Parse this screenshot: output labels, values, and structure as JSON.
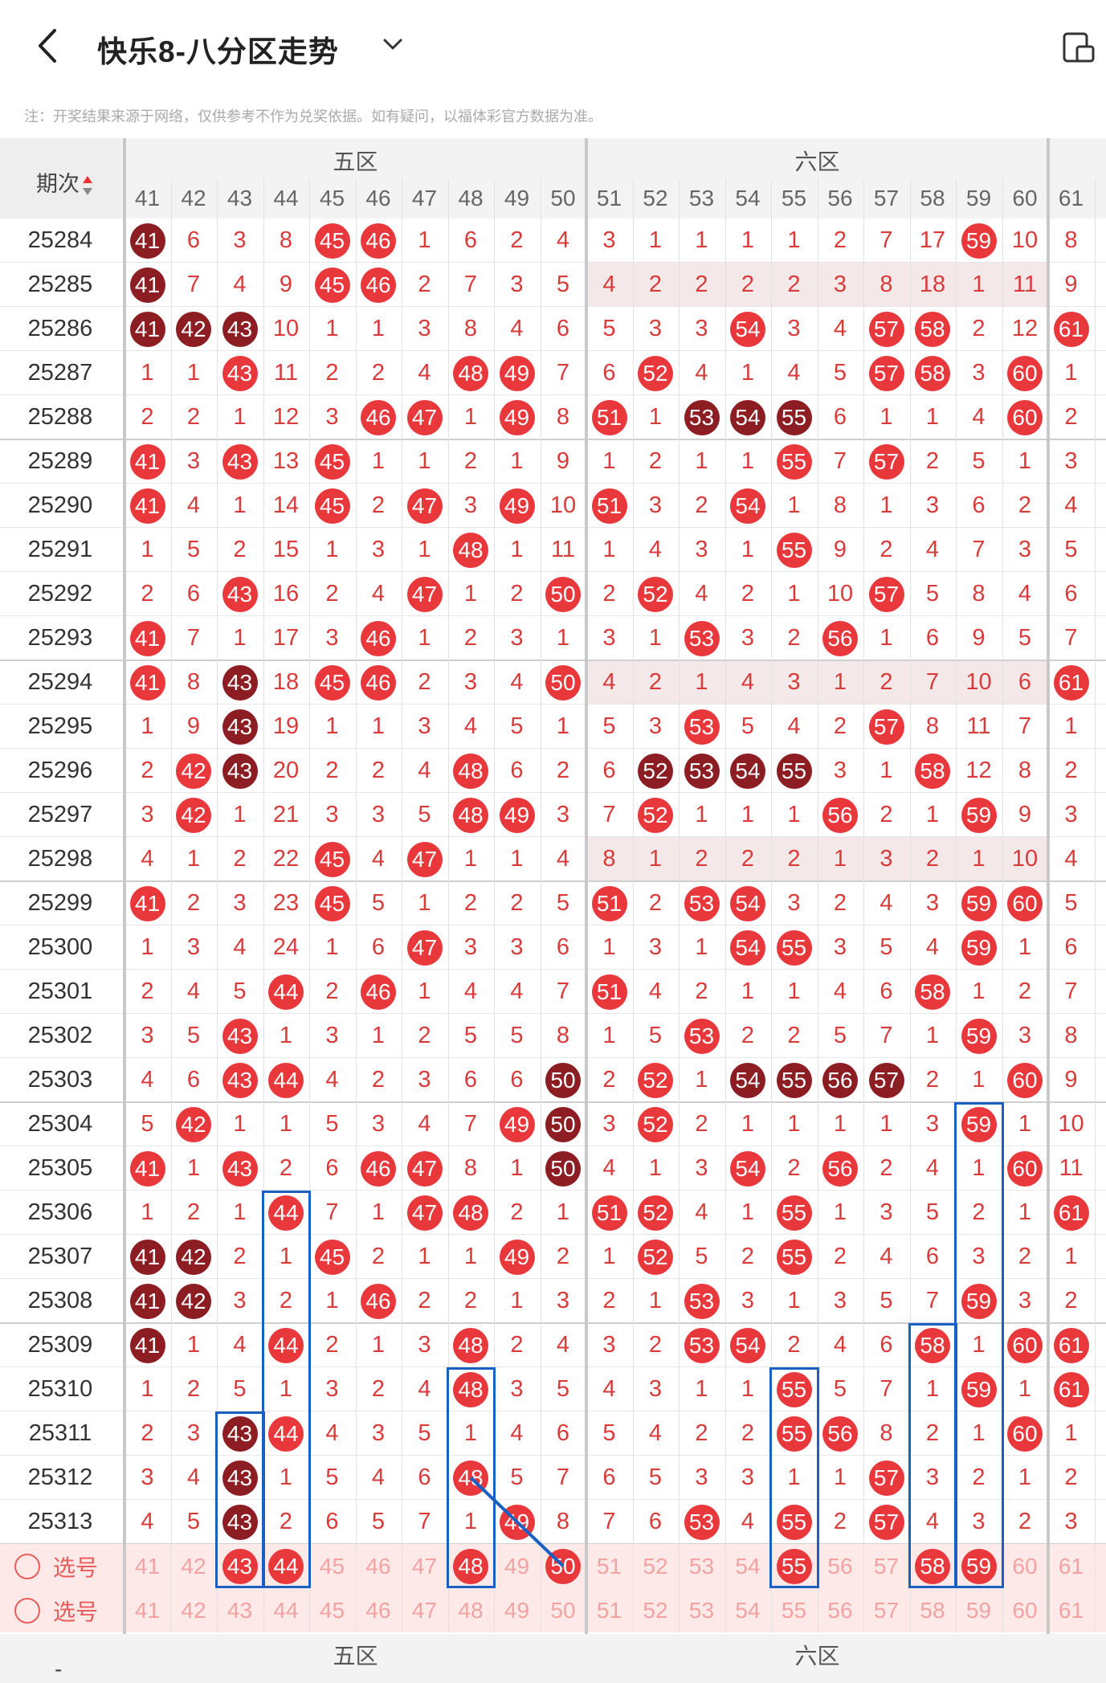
{
  "header": {
    "title": "快乐8-八分区走势",
    "back_icon": "chevron-left-icon",
    "dropdown_icon": "chevron-down-icon",
    "right_icon": "device-icon"
  },
  "note": "注：开奖结果来源于网络，仅供参考不作为兑奖依据。如有疑问，以福体彩官方数据为准。",
  "table": {
    "period_header": "期次",
    "sort_icon": "sort-icon",
    "zones": [
      {
        "name": "五区"
      },
      {
        "name": "六区"
      }
    ],
    "columns": [
      "41",
      "42",
      "43",
      "44",
      "45",
      "46",
      "47",
      "48",
      "49",
      "50",
      "51",
      "52",
      "53",
      "54",
      "55",
      "56",
      "57",
      "58",
      "59",
      "60",
      "61"
    ],
    "colors": {
      "hit": "#e8383c",
      "consecutive": "#8c1d22",
      "miss_text": "#d93b3b",
      "box": "#1a5fc2"
    },
    "rows": [
      {
        "period": "25284",
        "cells": [
          "41",
          "6",
          "3",
          "8",
          "45",
          "46",
          "1",
          "6",
          "2",
          "4",
          "3",
          "1",
          "1",
          "1",
          "1",
          "2",
          "7",
          "17",
          "59",
          "10",
          "8"
        ],
        "hits": [
          0,
          4,
          5,
          18
        ],
        "dark": [
          0
        ]
      },
      {
        "period": "25285",
        "cells": [
          "41",
          "7",
          "4",
          "9",
          "45",
          "46",
          "2",
          "7",
          "3",
          "5",
          "4",
          "2",
          "2",
          "2",
          "2",
          "3",
          "8",
          "18",
          "1",
          "11",
          "9"
        ],
        "hits": [
          0,
          4,
          5
        ],
        "dark": [
          0
        ]
      },
      {
        "period": "25286",
        "cells": [
          "41",
          "42",
          "43",
          "10",
          "1",
          "1",
          "3",
          "8",
          "4",
          "6",
          "5",
          "3",
          "3",
          "54",
          "3",
          "4",
          "57",
          "58",
          "2",
          "12",
          "61"
        ],
        "hits": [
          0,
          1,
          2,
          13,
          16,
          17,
          20
        ],
        "dark": [
          0,
          1,
          2
        ]
      },
      {
        "period": "25287",
        "cells": [
          "1",
          "1",
          "43",
          "11",
          "2",
          "2",
          "4",
          "48",
          "49",
          "7",
          "6",
          "52",
          "4",
          "1",
          "4",
          "5",
          "57",
          "58",
          "3",
          "60",
          "1"
        ],
        "hits": [
          2,
          7,
          8,
          11,
          16,
          17,
          19
        ],
        "dark": []
      },
      {
        "period": "25288",
        "cells": [
          "2",
          "2",
          "1",
          "12",
          "3",
          "46",
          "47",
          "1",
          "49",
          "8",
          "51",
          "1",
          "53",
          "54",
          "55",
          "6",
          "1",
          "1",
          "4",
          "60",
          "2"
        ],
        "hits": [
          5,
          6,
          8,
          10,
          12,
          13,
          14,
          19
        ],
        "dark": [
          12,
          13,
          14
        ]
      },
      {
        "period": "25289",
        "cells": [
          "41",
          "3",
          "43",
          "13",
          "45",
          "1",
          "1",
          "2",
          "1",
          "9",
          "1",
          "2",
          "1",
          "1",
          "55",
          "7",
          "57",
          "2",
          "5",
          "1",
          "3"
        ],
        "hits": [
          0,
          2,
          4,
          14,
          16
        ],
        "dark": []
      },
      {
        "period": "25290",
        "cells": [
          "41",
          "4",
          "1",
          "14",
          "45",
          "2",
          "47",
          "3",
          "49",
          "10",
          "51",
          "3",
          "2",
          "54",
          "1",
          "8",
          "1",
          "3",
          "6",
          "2",
          "4"
        ],
        "hits": [
          0,
          4,
          6,
          8,
          10,
          13
        ],
        "dark": []
      },
      {
        "period": "25291",
        "cells": [
          "1",
          "5",
          "2",
          "15",
          "1",
          "3",
          "1",
          "48",
          "1",
          "11",
          "1",
          "4",
          "3",
          "1",
          "55",
          "9",
          "2",
          "4",
          "7",
          "3",
          "5"
        ],
        "hits": [
          7,
          14
        ],
        "dark": []
      },
      {
        "period": "25292",
        "cells": [
          "2",
          "6",
          "43",
          "16",
          "2",
          "4",
          "47",
          "1",
          "2",
          "50",
          "2",
          "52",
          "4",
          "2",
          "1",
          "10",
          "57",
          "5",
          "8",
          "4",
          "6"
        ],
        "hits": [
          2,
          6,
          9,
          11,
          16
        ],
        "dark": []
      },
      {
        "period": "25293",
        "cells": [
          "41",
          "7",
          "1",
          "17",
          "3",
          "46",
          "1",
          "2",
          "3",
          "1",
          "3",
          "1",
          "53",
          "3",
          "2",
          "56",
          "1",
          "6",
          "9",
          "5",
          "7"
        ],
        "hits": [
          0,
          5,
          12,
          15
        ],
        "dark": []
      },
      {
        "period": "25294",
        "cells": [
          "41",
          "8",
          "43",
          "18",
          "45",
          "46",
          "2",
          "3",
          "4",
          "50",
          "4",
          "2",
          "1",
          "4",
          "3",
          "1",
          "2",
          "7",
          "10",
          "6",
          "61"
        ],
        "hits": [
          0,
          2,
          4,
          5,
          9,
          20
        ],
        "dark": [
          2
        ]
      },
      {
        "period": "25295",
        "cells": [
          "1",
          "9",
          "43",
          "19",
          "1",
          "1",
          "3",
          "4",
          "5",
          "1",
          "5",
          "3",
          "53",
          "5",
          "4",
          "2",
          "57",
          "8",
          "11",
          "7",
          "1"
        ],
        "hits": [
          2,
          12,
          16
        ],
        "dark": [
          2
        ]
      },
      {
        "period": "25296",
        "cells": [
          "2",
          "42",
          "43",
          "20",
          "2",
          "2",
          "4",
          "48",
          "6",
          "2",
          "6",
          "52",
          "53",
          "54",
          "55",
          "3",
          "1",
          "58",
          "12",
          "8",
          "2"
        ],
        "hits": [
          1,
          2,
          7,
          11,
          12,
          13,
          14,
          17
        ],
        "dark": [
          2,
          11,
          12,
          13,
          14
        ]
      },
      {
        "period": "25297",
        "cells": [
          "3",
          "42",
          "1",
          "21",
          "3",
          "3",
          "5",
          "48",
          "49",
          "3",
          "7",
          "52",
          "1",
          "1",
          "1",
          "56",
          "2",
          "1",
          "59",
          "9",
          "3"
        ],
        "hits": [
          1,
          7,
          8,
          11,
          15,
          18
        ],
        "dark": []
      },
      {
        "period": "25298",
        "cells": [
          "4",
          "1",
          "2",
          "22",
          "45",
          "4",
          "47",
          "1",
          "1",
          "4",
          "8",
          "1",
          "2",
          "2",
          "2",
          "1",
          "3",
          "2",
          "1",
          "10",
          "4"
        ],
        "hits": [
          4,
          6
        ],
        "dark": []
      },
      {
        "period": "25299",
        "cells": [
          "41",
          "2",
          "3",
          "23",
          "45",
          "5",
          "1",
          "2",
          "2",
          "5",
          "51",
          "2",
          "53",
          "54",
          "3",
          "2",
          "4",
          "3",
          "59",
          "60",
          "5"
        ],
        "hits": [
          0,
          4,
          10,
          12,
          13,
          18,
          19
        ],
        "dark": []
      },
      {
        "period": "25300",
        "cells": [
          "1",
          "3",
          "4",
          "24",
          "1",
          "6",
          "47",
          "3",
          "3",
          "6",
          "1",
          "3",
          "1",
          "54",
          "55",
          "3",
          "5",
          "4",
          "59",
          "1",
          "6"
        ],
        "hits": [
          6,
          13,
          14,
          18
        ],
        "dark": []
      },
      {
        "period": "25301",
        "cells": [
          "2",
          "4",
          "5",
          "44",
          "2",
          "46",
          "1",
          "4",
          "4",
          "7",
          "51",
          "4",
          "2",
          "1",
          "1",
          "4",
          "6",
          "58",
          "1",
          "2",
          "7"
        ],
        "hits": [
          3,
          5,
          10,
          17
        ],
        "dark": []
      },
      {
        "period": "25302",
        "cells": [
          "3",
          "5",
          "43",
          "1",
          "3",
          "1",
          "2",
          "5",
          "5",
          "8",
          "1",
          "5",
          "53",
          "2",
          "2",
          "5",
          "7",
          "1",
          "59",
          "3",
          "8"
        ],
        "hits": [
          2,
          12,
          18
        ],
        "dark": []
      },
      {
        "period": "25303",
        "cells": [
          "4",
          "6",
          "43",
          "44",
          "4",
          "2",
          "3",
          "6",
          "6",
          "50",
          "2",
          "52",
          "1",
          "54",
          "55",
          "56",
          "57",
          "2",
          "1",
          "60",
          "9"
        ],
        "hits": [
          2,
          3,
          9,
          11,
          13,
          14,
          15,
          16,
          19
        ],
        "dark": [
          9,
          13,
          14,
          15,
          16
        ]
      },
      {
        "period": "25304",
        "cells": [
          "5",
          "42",
          "1",
          "1",
          "5",
          "3",
          "4",
          "7",
          "49",
          "50",
          "3",
          "52",
          "2",
          "1",
          "1",
          "1",
          "1",
          "3",
          "59",
          "1",
          "10"
        ],
        "hits": [
          1,
          8,
          9,
          11,
          18
        ],
        "dark": [
          9
        ]
      },
      {
        "period": "25305",
        "cells": [
          "41",
          "1",
          "43",
          "2",
          "6",
          "46",
          "47",
          "8",
          "1",
          "50",
          "4",
          "1",
          "3",
          "54",
          "2",
          "56",
          "2",
          "4",
          "1",
          "60",
          "11"
        ],
        "hits": [
          0,
          2,
          5,
          6,
          9,
          13,
          15,
          19
        ],
        "dark": [
          9
        ]
      },
      {
        "period": "25306",
        "cells": [
          "1",
          "2",
          "1",
          "44",
          "7",
          "1",
          "47",
          "48",
          "2",
          "1",
          "51",
          "52",
          "4",
          "1",
          "55",
          "1",
          "3",
          "5",
          "2",
          "1",
          "61"
        ],
        "hits": [
          3,
          6,
          7,
          10,
          11,
          14,
          20
        ],
        "dark": []
      },
      {
        "period": "25307",
        "cells": [
          "41",
          "42",
          "2",
          "1",
          "45",
          "2",
          "1",
          "1",
          "49",
          "2",
          "1",
          "52",
          "5",
          "2",
          "55",
          "2",
          "4",
          "6",
          "3",
          "2",
          "1"
        ],
        "hits": [
          0,
          1,
          4,
          8,
          11,
          14
        ],
        "dark": [
          0,
          1
        ]
      },
      {
        "period": "25308",
        "cells": [
          "41",
          "42",
          "3",
          "2",
          "1",
          "46",
          "2",
          "2",
          "1",
          "3",
          "2",
          "1",
          "53",
          "3",
          "1",
          "3",
          "5",
          "7",
          "59",
          "3",
          "2"
        ],
        "hits": [
          0,
          1,
          5,
          12,
          18
        ],
        "dark": [
          0,
          1
        ]
      },
      {
        "period": "25309",
        "cells": [
          "41",
          "1",
          "4",
          "44",
          "2",
          "1",
          "3",
          "48",
          "2",
          "4",
          "3",
          "2",
          "53",
          "54",
          "2",
          "4",
          "6",
          "58",
          "1",
          "60",
          "61"
        ],
        "hits": [
          0,
          3,
          7,
          12,
          13,
          17,
          19,
          20
        ],
        "dark": [
          0
        ]
      },
      {
        "period": "25310",
        "cells": [
          "1",
          "2",
          "5",
          "1",
          "3",
          "2",
          "4",
          "48",
          "3",
          "5",
          "4",
          "3",
          "1",
          "1",
          "55",
          "5",
          "7",
          "1",
          "59",
          "1",
          "61"
        ],
        "hits": [
          7,
          14,
          18,
          20
        ],
        "dark": []
      },
      {
        "period": "25311",
        "cells": [
          "2",
          "3",
          "43",
          "44",
          "4",
          "3",
          "5",
          "1",
          "4",
          "6",
          "5",
          "4",
          "2",
          "2",
          "55",
          "56",
          "8",
          "2",
          "1",
          "60",
          "1"
        ],
        "hits": [
          2,
          3,
          14,
          15,
          19
        ],
        "dark": [
          2
        ]
      },
      {
        "period": "25312",
        "cells": [
          "3",
          "4",
          "43",
          "1",
          "5",
          "4",
          "6",
          "48",
          "5",
          "7",
          "6",
          "5",
          "3",
          "3",
          "1",
          "1",
          "57",
          "3",
          "2",
          "1",
          "2"
        ],
        "hits": [
          2,
          7,
          16
        ],
        "dark": [
          2
        ]
      },
      {
        "period": "25313",
        "cells": [
          "4",
          "5",
          "43",
          "2",
          "6",
          "5",
          "7",
          "1",
          "49",
          "8",
          "7",
          "6",
          "53",
          "4",
          "55",
          "2",
          "57",
          "4",
          "3",
          "2",
          "3"
        ],
        "hits": [
          2,
          8,
          12,
          14,
          16
        ],
        "dark": [
          2
        ]
      }
    ],
    "pick_label": "选号",
    "pick_row1_selected": [
      2,
      3,
      7,
      9,
      14,
      17,
      18
    ],
    "footer_zones": [
      {
        "name": "五区"
      },
      {
        "name": "六区"
      }
    ],
    "footer_label": "-"
  }
}
